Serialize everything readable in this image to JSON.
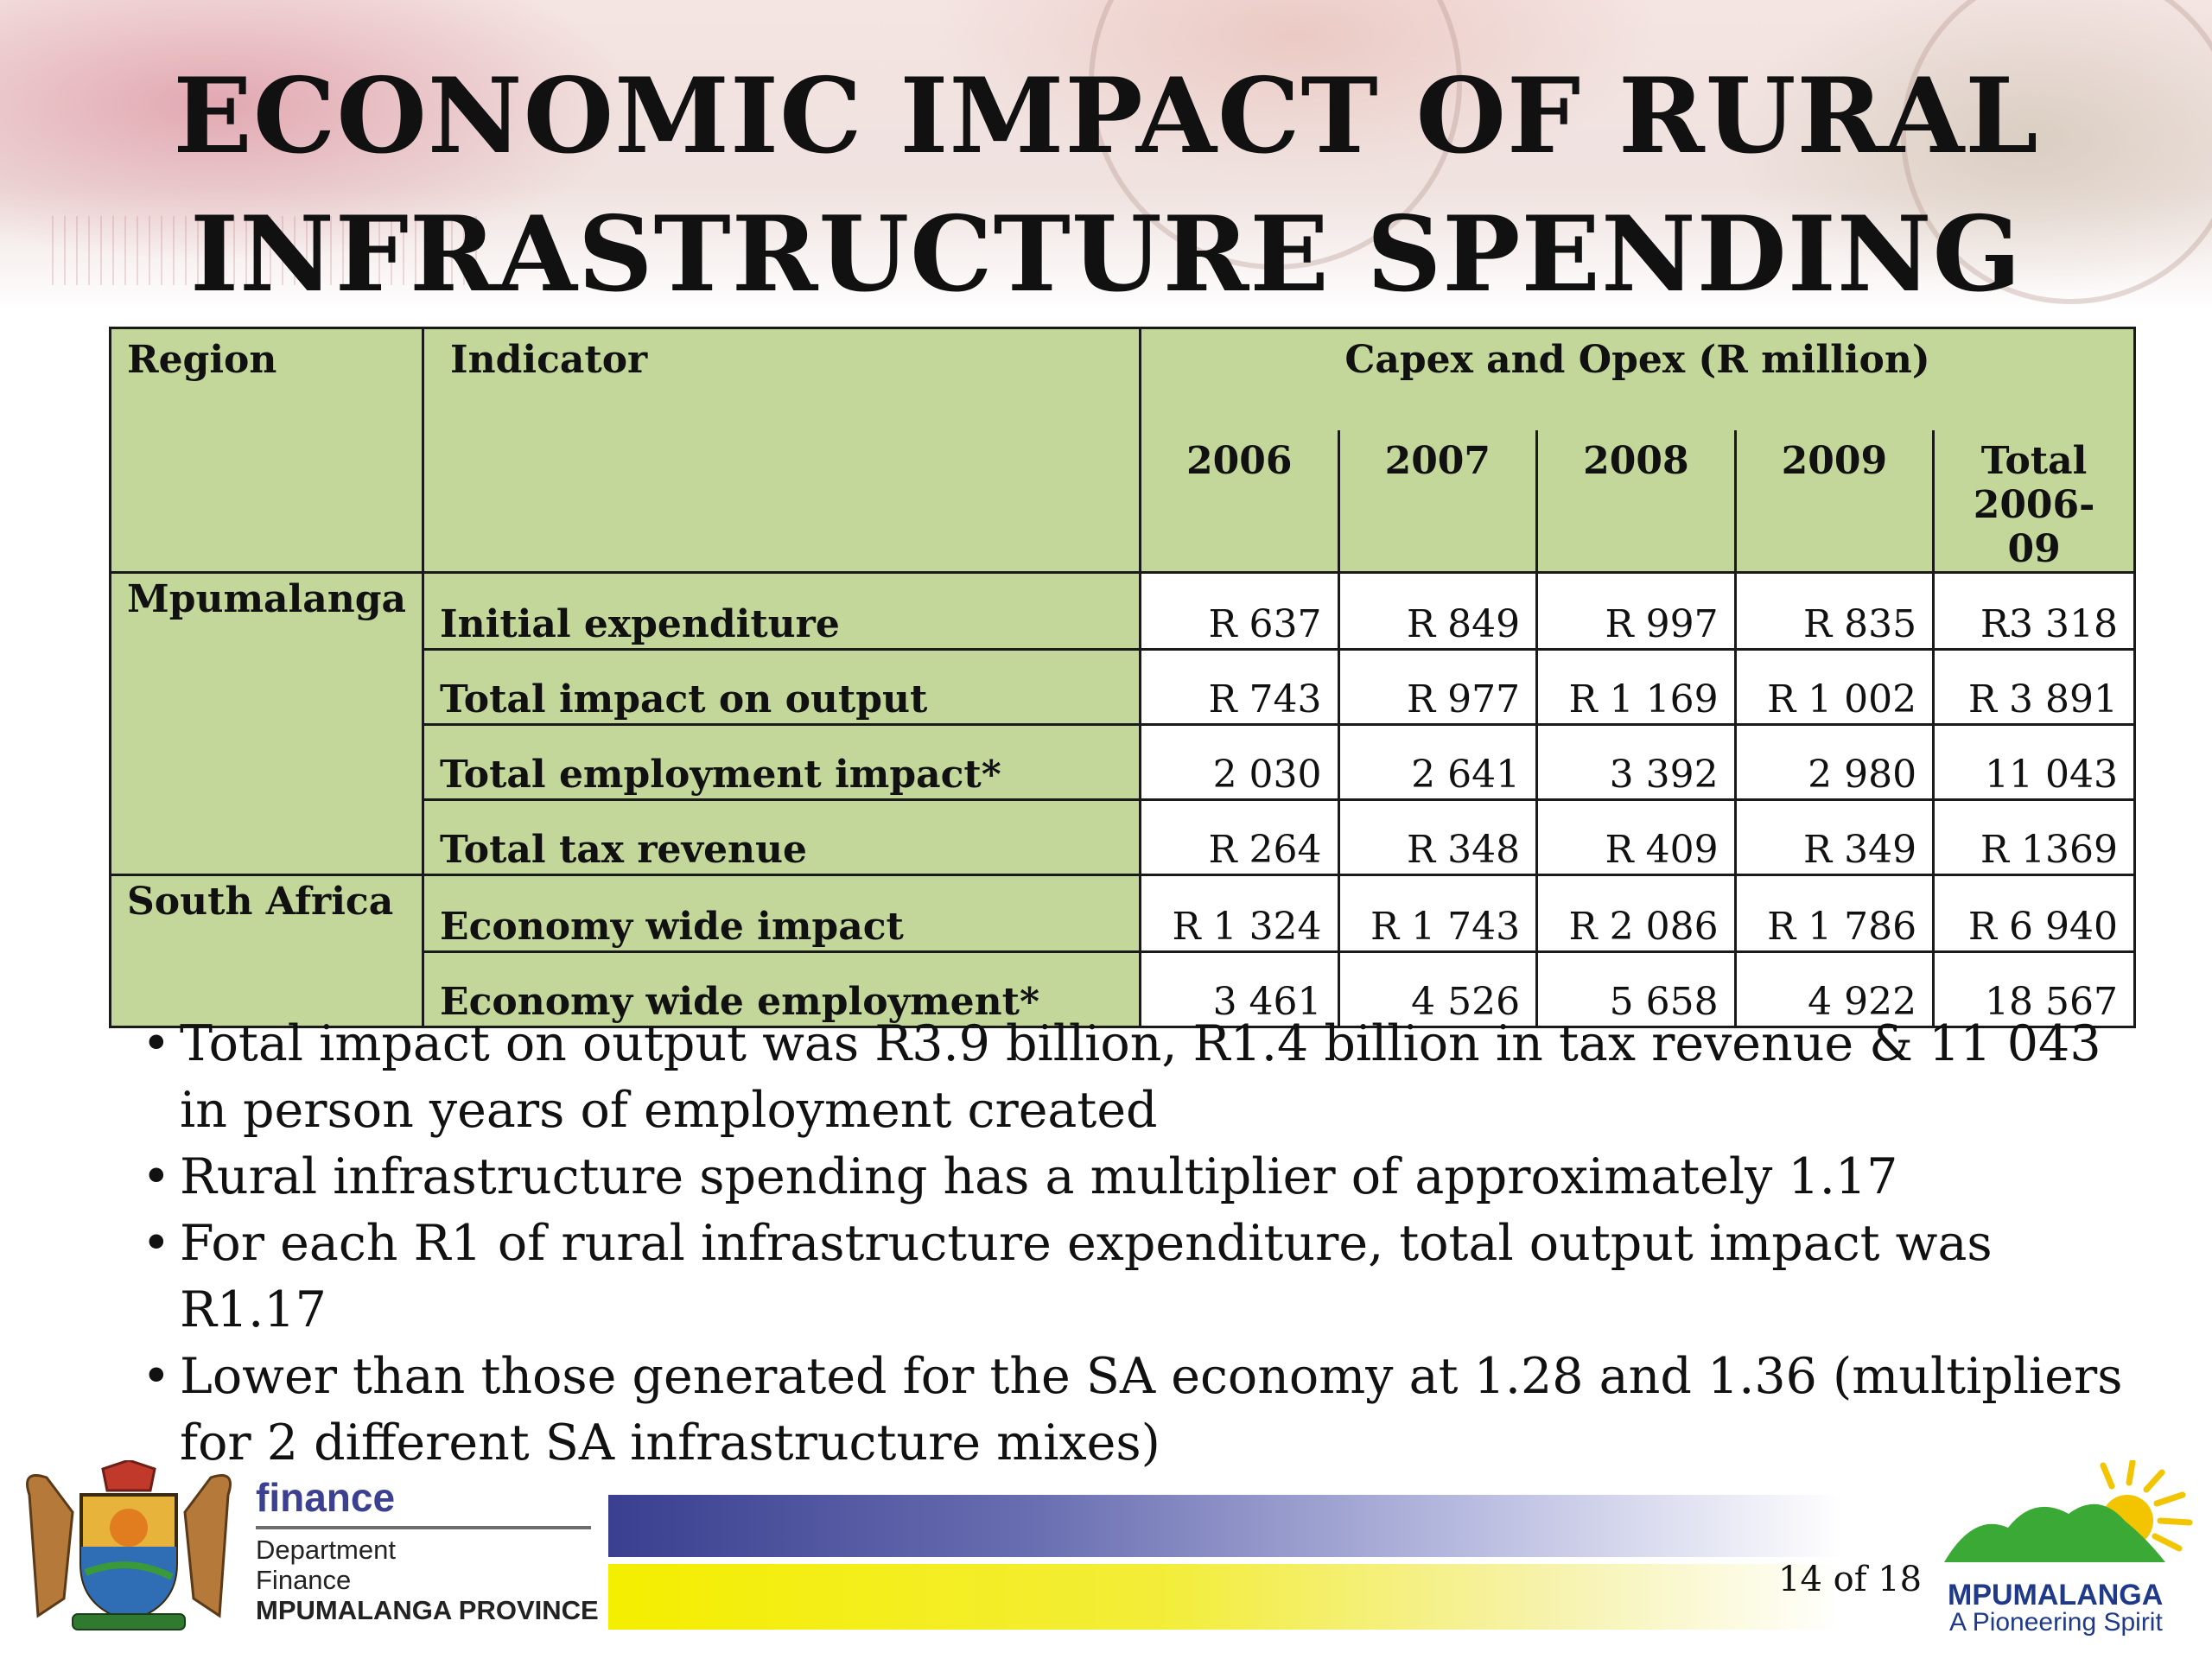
{
  "slide": {
    "title_line1": "ECONOMIC IMPACT OF RURAL",
    "title_line2": "INFRASTRUCTURE SPENDING"
  },
  "table": {
    "headers": {
      "region": "Region",
      "indicator": "Indicator",
      "group": "Capex and Opex  (R million)",
      "years": [
        "2006",
        "2007",
        "2008",
        "2009"
      ],
      "total_line1": "Total",
      "total_line2": "2006-09"
    },
    "regions": [
      "Mpumalanga",
      "South Africa"
    ],
    "rows": [
      {
        "indicator": "Initial expenditure",
        "values": [
          "R 637",
          "R 849",
          "R 997",
          "R 835",
          "R3 318"
        ]
      },
      {
        "indicator": "Total impact on output",
        "values": [
          "R 743",
          "R 977",
          "R 1 169",
          "R 1 002",
          "R 3 891"
        ]
      },
      {
        "indicator": "Total employment impact*",
        "values": [
          "2 030",
          "2 641",
          "3 392",
          "2 980",
          "11 043"
        ]
      },
      {
        "indicator": "Total tax revenue",
        "values": [
          "R 264",
          "R 348",
          "R 409",
          "R 349",
          "R 1369"
        ]
      },
      {
        "indicator": "Economy wide impact",
        "values": [
          "R 1 324",
          "R 1 743",
          "R 2 086",
          "R 1 786",
          "R 6 940"
        ]
      },
      {
        "indicator": "Economy wide employment*",
        "values": [
          "3 461",
          "4 526",
          "5 658",
          "4 922",
          "18 567"
        ]
      }
    ]
  },
  "bullets": [
    "Total impact on output was R3.9 billion, R1.4 billion in tax revenue & 11 043 in person years of employment created",
    " Rural infrastructure spending has a multiplier of approximately 1.17",
    " For each R1 of rural infrastructure expenditure, total output impact was R1.17",
    " Lower than those generated for the SA economy at 1.28 and 1.36 (multipliers for 2 different SA infrastructure mixes)"
  ],
  "bullet_glyph": "•",
  "footer": {
    "dept_name": "finance",
    "dept_line1": "Department",
    "dept_line2": "Finance",
    "dept_line3": "MPUMALANGA PROVINCE",
    "page": "14 of 18",
    "logo_name": "MPUMALANGA",
    "logo_tagline": "A Pioneering Spirit"
  },
  "colors": {
    "table_header_green": "#c4d79b",
    "bar_blue": "#3a3f8f",
    "bar_yellow": "#f4ee00",
    "logo_blue": "#1f3a8a",
    "logo_green": "#3aa935",
    "logo_sun": "#f2c500"
  }
}
